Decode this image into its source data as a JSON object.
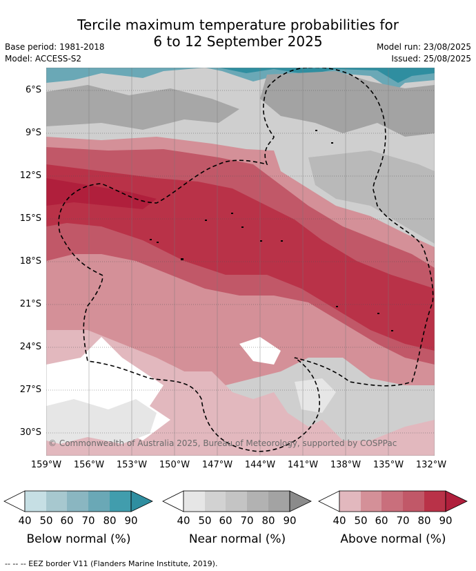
{
  "title": {
    "line1": "Tercile maximum temperature probabilities for",
    "line2": "6 to 12 September 2025"
  },
  "meta": {
    "base_period": "Base period: 1981-2018",
    "model": "Model: ACCESS-S2",
    "model_run": "Model run: 23/08/2025",
    "issued": "Issued: 25/08/2025"
  },
  "copyright": "© Commonwealth of Australia 2025, Bureau of Meteorology, supported by COSPPac",
  "footer": "-- -- -- EEZ border V11 (Flanders Marine Institute, 2019).",
  "map": {
    "lat_ticks": [
      "6°S",
      "9°S",
      "12°S",
      "15°S",
      "18°S",
      "21°S",
      "24°S",
      "27°S",
      "30°S"
    ],
    "lon_ticks": [
      "159°W",
      "156°W",
      "153°W",
      "150°W",
      "147°W",
      "144°W",
      "141°W",
      "138°W",
      "135°W",
      "132°W"
    ],
    "summary": {
      "north_band": "near normal (grey) with below normal (teal) along the northern edge",
      "central_band": "above normal (red) 60-90% across central and eastern region",
      "south_band": "mixed low-probability above normal and near normal"
    }
  },
  "colorbars": [
    {
      "label": "Below normal (%)",
      "ticks": [
        "40",
        "50",
        "60",
        "70",
        "80",
        "90"
      ],
      "colors": [
        "#ffffff",
        "#c6dfe4",
        "#a7c8cf",
        "#8ab6c1",
        "#6aa8b6",
        "#419dad",
        "#2f8ea0"
      ]
    },
    {
      "label": "Near normal (%)",
      "ticks": [
        "40",
        "50",
        "60",
        "70",
        "80",
        "90"
      ],
      "colors": [
        "#ffffff",
        "#e6e6e6",
        "#d2d2d2",
        "#c4c4c4",
        "#b2b2b2",
        "#a3a3a3",
        "#8b8b8b"
      ]
    },
    {
      "label": "Above normal (%)",
      "ticks": [
        "40",
        "50",
        "60",
        "70",
        "80",
        "90"
      ],
      "colors": [
        "#ffffff",
        "#e2b8be",
        "#d49098",
        "#c96f7c",
        "#c15868",
        "#b93248",
        "#b01f3c"
      ]
    }
  ]
}
